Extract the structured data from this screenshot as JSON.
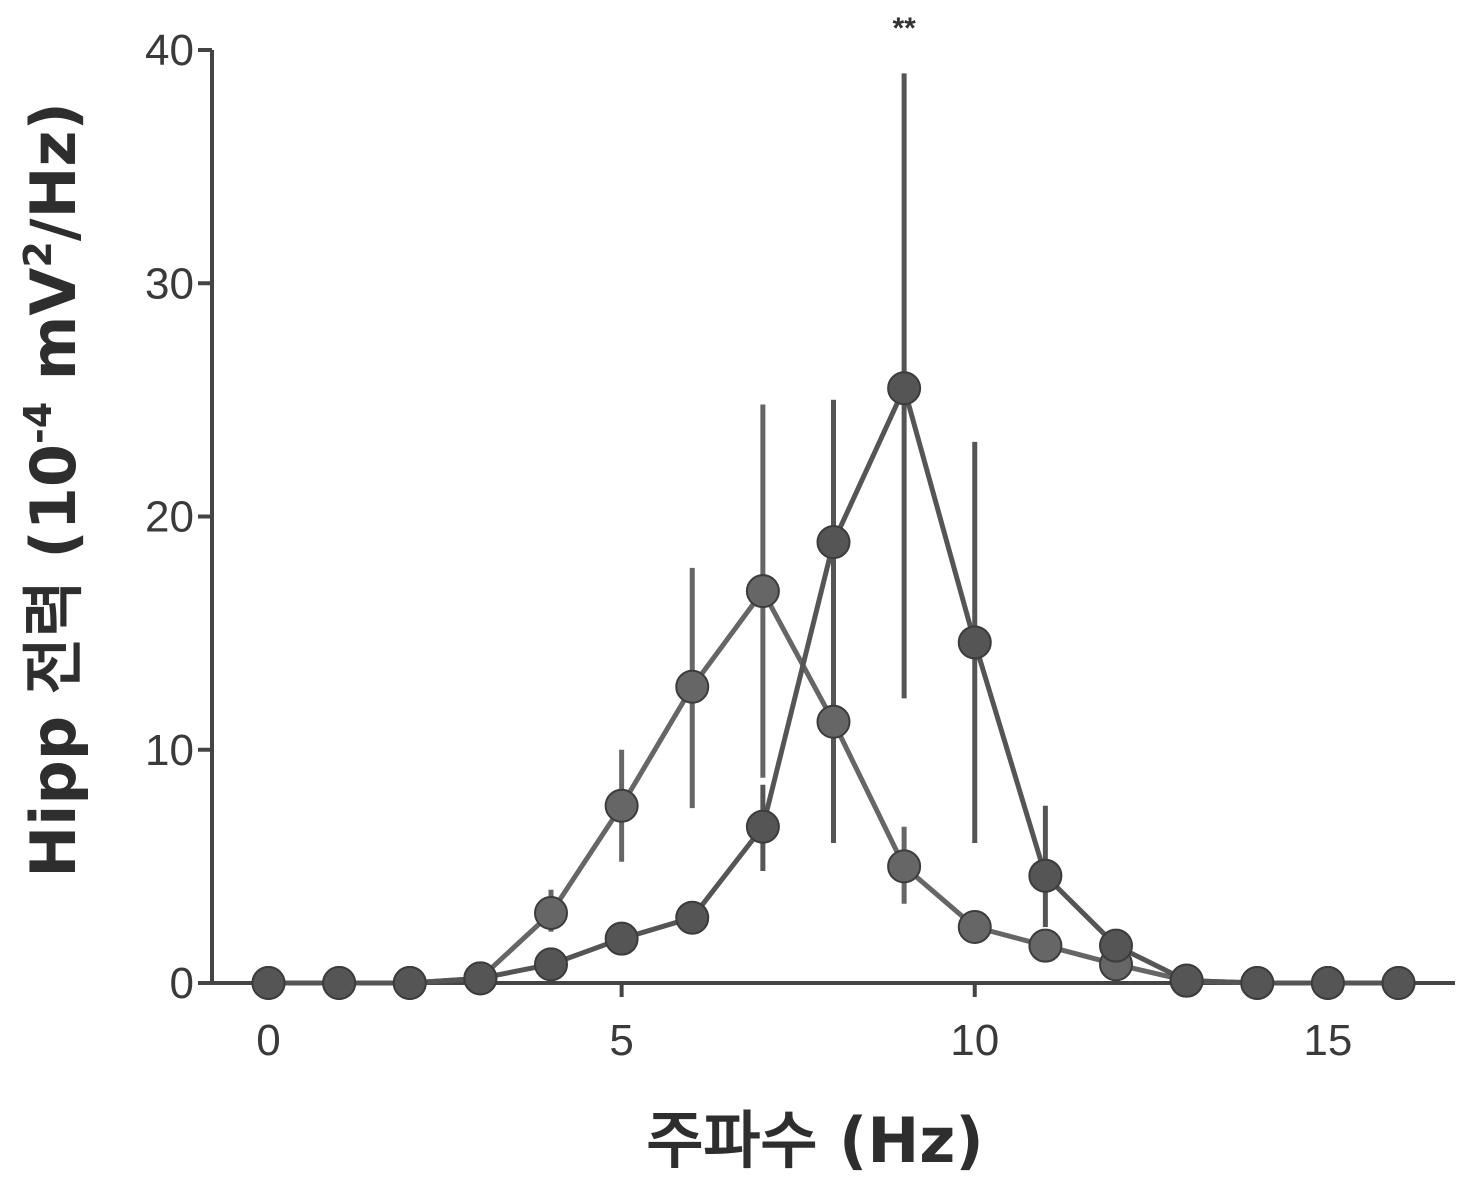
{
  "chart_data": {
    "type": "line",
    "xlabel": "주파수 (Hz)",
    "ylabel_main": "Hipp 전력 (10",
    "ylabel_sup1": "-4",
    "ylabel_mid": " mV",
    "ylabel_sup2": "2",
    "ylabel_end": "/Hz)",
    "xlim": [
      -0.8,
      16.8
    ],
    "ylim": [
      0,
      40
    ],
    "x_ticks": [
      0,
      5,
      10,
      15
    ],
    "y_ticks": [
      0,
      10,
      20,
      30,
      40
    ],
    "annotations": [
      {
        "text": "**",
        "x": 9
      }
    ],
    "series": [
      {
        "x": [
          0,
          1,
          2,
          3,
          4,
          5,
          6,
          7,
          8,
          9,
          10,
          11,
          12,
          13,
          14,
          15,
          16
        ],
        "values": [
          0,
          0,
          0,
          0.2,
          3.0,
          7.6,
          12.7,
          16.8,
          11.2,
          5.0,
          2.4,
          1.6,
          0.8,
          0.1,
          0,
          0,
          0
        ],
        "err_low": [
          null,
          null,
          null,
          null,
          2.2,
          5.2,
          7.5,
          8.8,
          6.0,
          3.4,
          null,
          null,
          null,
          null,
          null,
          null,
          null
        ],
        "err_high": [
          null,
          null,
          null,
          null,
          4.0,
          10.0,
          17.8,
          24.8,
          25.0,
          6.7,
          null,
          null,
          null,
          null,
          null,
          null,
          null
        ],
        "color": "#666666"
      },
      {
        "x": [
          0,
          1,
          2,
          3,
          4,
          5,
          6,
          7,
          8,
          9,
          10,
          11,
          12,
          13,
          14,
          15,
          16
        ],
        "values": [
          0,
          0,
          0,
          0.2,
          0.8,
          1.9,
          2.8,
          6.7,
          18.9,
          25.5,
          14.6,
          4.6,
          1.6,
          0.1,
          0,
          0,
          0
        ],
        "err_low": [
          null,
          null,
          null,
          null,
          null,
          null,
          null,
          4.8,
          6.0,
          12.2,
          6.0,
          2.4,
          null,
          null,
          null,
          null,
          null
        ],
        "err_high": [
          null,
          null,
          null,
          null,
          null,
          null,
          null,
          8.5,
          25.0,
          39.0,
          23.2,
          7.6,
          null,
          null,
          null,
          null,
          null
        ],
        "color": "#555555"
      }
    ]
  }
}
